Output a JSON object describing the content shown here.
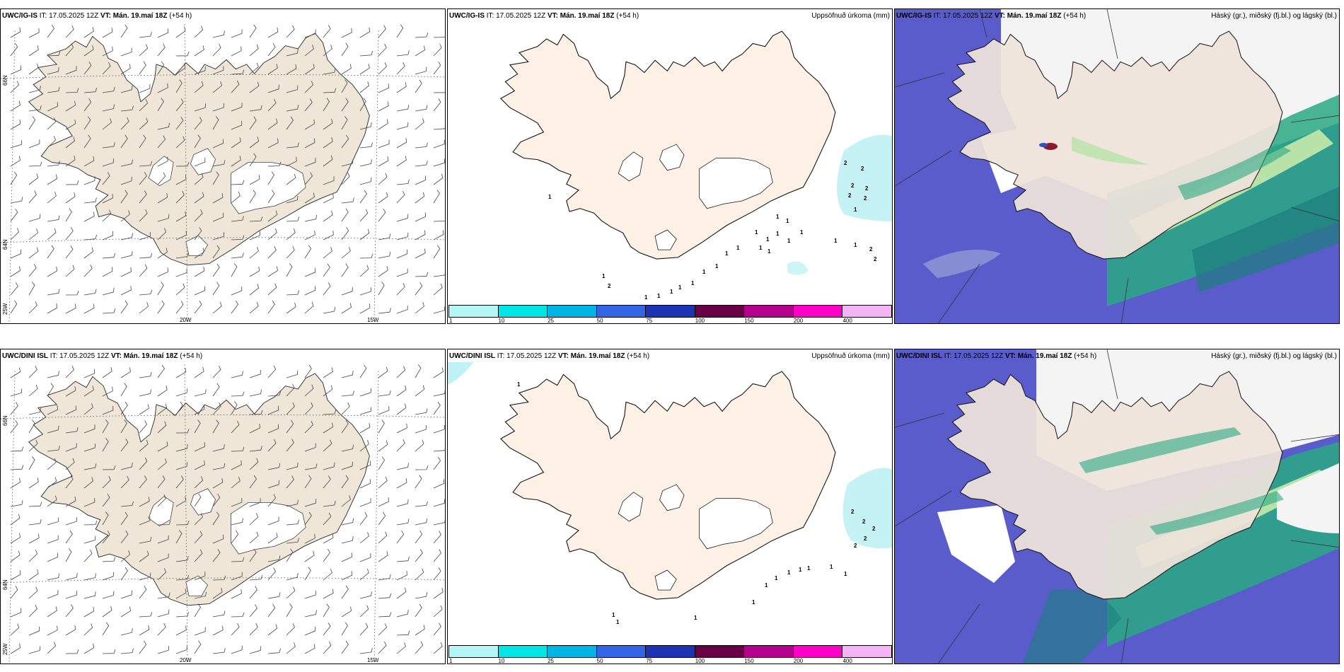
{
  "rows": [
    {
      "model": "UWC/IG-IS",
      "it_label": "IT: 17.05.2025 12Z",
      "vt_label": "VT: Mán. 19.maí 18Z",
      "lead": "(+54 h)"
    },
    {
      "model": "UWC/DINI ISL",
      "it_label": "IT: 17.05.2025 12Z",
      "vt_label": "VT: Mán. 19.maí 18Z",
      "lead": "(+54 h)"
    }
  ],
  "precip_title": "Uppsöfnuð úrkoma (mm)",
  "cloud_title": "Háský (gr.), miðský (fj.bl.) og lágský (bl.)",
  "axes": {
    "lon_20w": "20W",
    "lon_15w": "15W",
    "lon_25w": "25W",
    "lat_66n": "66N",
    "lat_64n": "64N"
  },
  "colorbar": {
    "ticks": [
      "1",
      "10",
      "25",
      "50",
      "75",
      "100",
      "150",
      "200",
      "400"
    ],
    "colors": [
      "#b4f5f5",
      "#00e6e6",
      "#00b4e6",
      "#3264e6",
      "#1e32b4",
      "#690046",
      "#b4008c",
      "#ff00c8",
      "#f5b4f5"
    ]
  },
  "precip_labels_ig": [
    "1",
    "1",
    "2",
    "1",
    "1",
    "1",
    "1",
    "1",
    "1",
    "1",
    "1",
    "1",
    "1",
    "1",
    "1",
    "1",
    "1",
    "1",
    "2",
    "2",
    "2",
    "2",
    "2",
    "2",
    "2",
    "2",
    "1",
    "1",
    "1",
    "1",
    "1",
    "1"
  ],
  "precip_labels_dini": [
    "1",
    "1",
    "1",
    "1",
    "1",
    "1",
    "1",
    "1",
    "1",
    "1",
    "2",
    "2",
    "2",
    "2",
    "2",
    "1",
    "1"
  ],
  "colors": {
    "land_wind": "#f0e6d7",
    "land_precip": "#fcf1e4",
    "land_cloud": "#efe4db",
    "low_cloud": "#5a5ccc",
    "mid_cloud": "#2aa882",
    "high_cloud": "#b7e2a8",
    "drizzle": "#bff2f4"
  }
}
